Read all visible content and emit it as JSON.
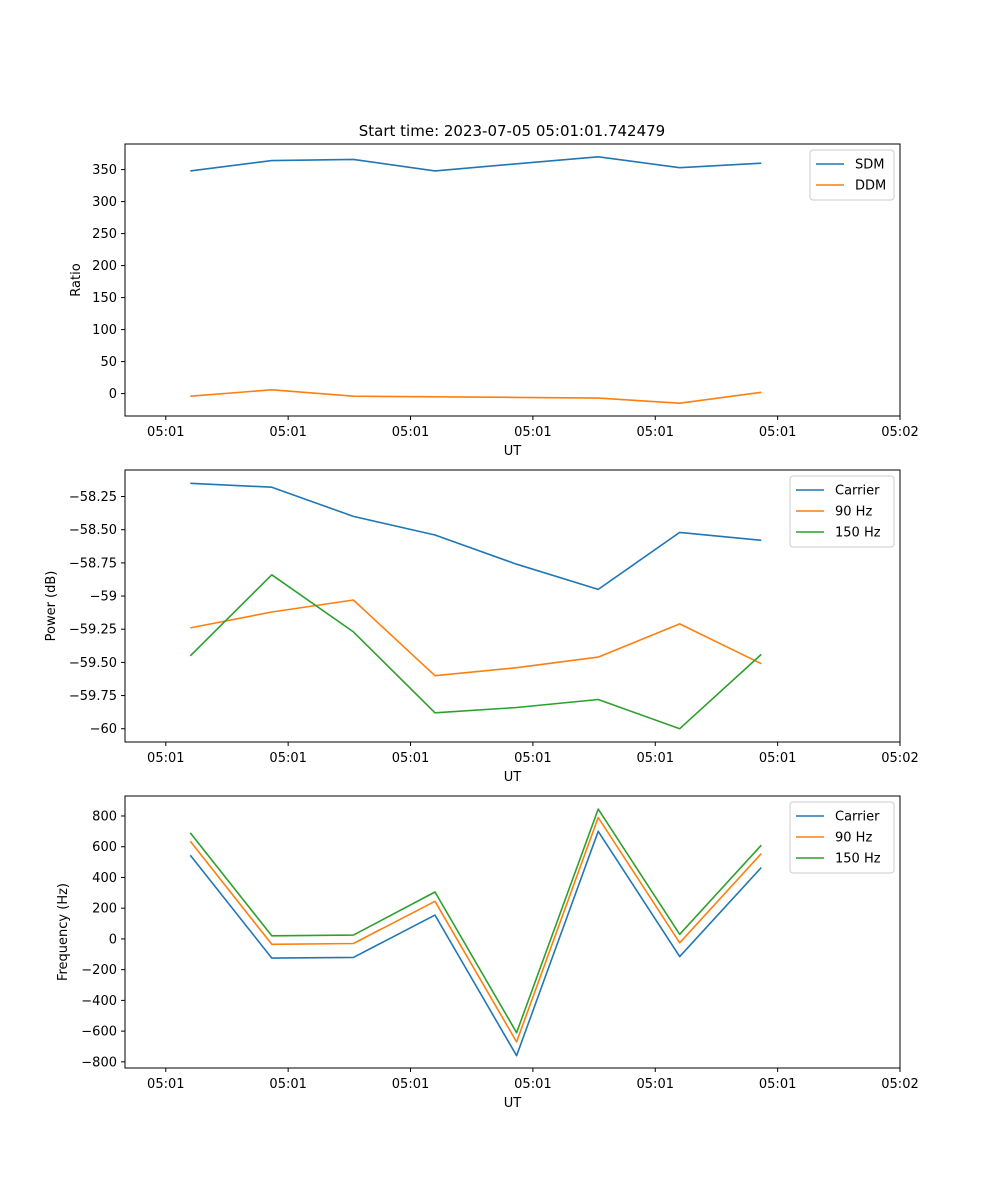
{
  "figure_title": "Start time: 2023-07-05 05:01:01.742479",
  "chart_data": [
    {
      "type": "line",
      "title": "Start time: 2023-07-05 05:01:01.742479",
      "xlabel": "UT",
      "ylabel": "Ratio",
      "xtick_labels": [
        "05:01",
        "05:01",
        "05:01",
        "05:01",
        "05:01",
        "05:01",
        "05:02"
      ],
      "xlim": [
        -0.5,
        9.0
      ],
      "x": [
        0.3,
        1.3,
        2.3,
        3.3,
        4.3,
        5.3,
        6.3,
        7.3
      ],
      "ylim": [
        -35,
        390
      ],
      "yticks": [
        0,
        50,
        100,
        150,
        200,
        250,
        300,
        350
      ],
      "legend_position": "upper right",
      "grid": false,
      "series": [
        {
          "name": "SDM",
          "color": "#1f77b4",
          "values": [
            348,
            364,
            366,
            348,
            359,
            370,
            353,
            360
          ]
        },
        {
          "name": "DDM",
          "color": "#ff7f0e",
          "values": [
            -4,
            6,
            -4,
            -5,
            -6,
            -7,
            -15,
            2
          ]
        }
      ]
    },
    {
      "type": "line",
      "title": "",
      "xlabel": "UT",
      "ylabel": "Power (dB)",
      "xtick_labels": [
        "05:01",
        "05:01",
        "05:01",
        "05:01",
        "05:01",
        "05:01",
        "05:02"
      ],
      "xlim": [
        -0.5,
        9.0
      ],
      "x": [
        0.3,
        1.3,
        2.3,
        3.3,
        4.3,
        5.3,
        6.3,
        7.3
      ],
      "ylim": [
        -60.1,
        -58.05
      ],
      "yticks": [
        -60.0,
        -59.75,
        -59.5,
        -59.25,
        -59.0,
        -58.75,
        -58.5,
        -58.25
      ],
      "legend_position": "upper right",
      "grid": false,
      "series": [
        {
          "name": "Carrier",
          "color": "#1f77b4",
          "values": [
            -58.15,
            -58.18,
            -58.4,
            -58.54,
            -58.76,
            -58.95,
            -58.52,
            -58.58
          ]
        },
        {
          "name": "90 Hz",
          "color": "#ff7f0e",
          "values": [
            -59.24,
            -59.12,
            -59.03,
            -59.6,
            -59.54,
            -59.46,
            -59.21,
            -59.51
          ]
        },
        {
          "name": "150 Hz",
          "color": "#2ca02c",
          "values": [
            -59.45,
            -58.84,
            -59.27,
            -59.88,
            -59.84,
            -59.78,
            -60.0,
            -59.44
          ]
        }
      ]
    },
    {
      "type": "line",
      "title": "",
      "xlabel": "UT",
      "ylabel": "Frequency (Hz)",
      "xtick_labels": [
        "05:01",
        "05:01",
        "05:01",
        "05:01",
        "05:01",
        "05:01",
        "05:02"
      ],
      "xlim": [
        -0.5,
        9.0
      ],
      "x": [
        0.3,
        1.3,
        2.3,
        3.3,
        4.3,
        5.3,
        6.3,
        7.3
      ],
      "ylim": [
        -840,
        930
      ],
      "yticks": [
        -800,
        -600,
        -400,
        -200,
        0,
        200,
        400,
        600,
        800
      ],
      "legend_position": "upper right",
      "grid": false,
      "series": [
        {
          "name": "Carrier",
          "color": "#1f77b4",
          "values": [
            545,
            -125,
            -120,
            155,
            -760,
            700,
            -115,
            465
          ]
        },
        {
          "name": "90 Hz",
          "color": "#ff7f0e",
          "values": [
            635,
            -35,
            -30,
            245,
            -670,
            790,
            -25,
            555
          ]
        },
        {
          "name": "150 Hz",
          "color": "#2ca02c",
          "values": [
            690,
            20,
            25,
            305,
            -610,
            845,
            30,
            610
          ]
        }
      ]
    }
  ]
}
